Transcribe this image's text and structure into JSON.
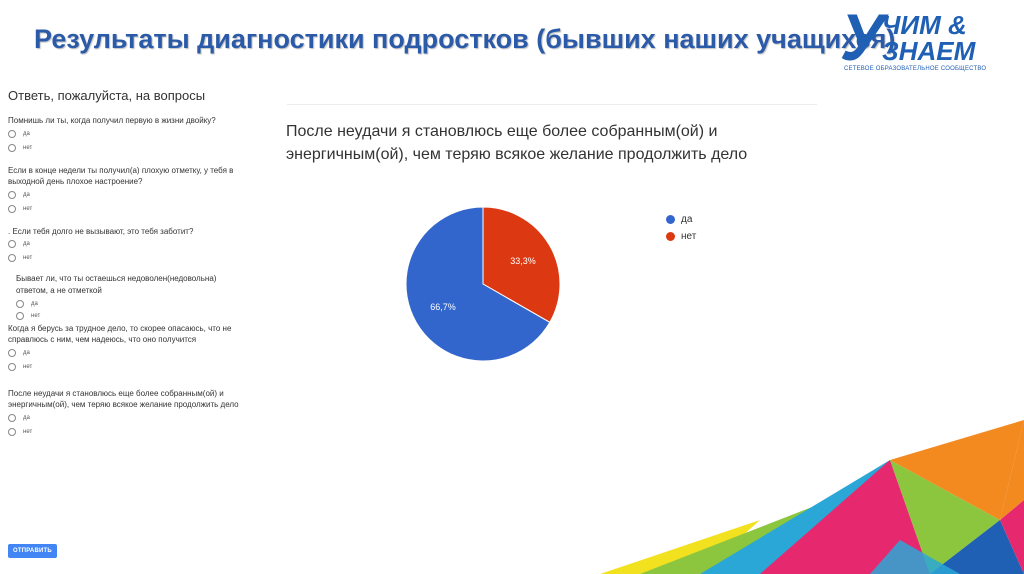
{
  "slide": {
    "title": "Результаты диагностики подростков (бывших наших  учащихся)"
  },
  "logo": {
    "letter": "У",
    "line1": "ЧИМ &",
    "line2": "ЗНАЕМ",
    "subtitle": "СЕТЕВОЕ ОБРАЗОВАТЕЛЬНОЕ СООБЩЕСТВО"
  },
  "form": {
    "title": "Ответь, пожалуйста, на вопросы",
    "questions": [
      {
        "text": "Помнишь ли ты, когда получил первую в жизни двойку?",
        "options": [
          "да",
          "нет"
        ]
      },
      {
        "text": "Если в конце недели ты получил(а) плохую отметку, у тебя в выходной день плохое настроение?",
        "options": [
          "да",
          "нет"
        ]
      },
      {
        "text": ". Если тебя долго не вызывают, это тебя заботит?",
        "options": [
          "да",
          "нет"
        ]
      },
      {
        "text": "Бывает ли, что ты остаешься недоволен(недовольна) ответом, а не отметкой",
        "options": [
          "да",
          "нет"
        ]
      },
      {
        "text": "Когда я берусь за трудное дело, то скорее опасаюсь, что не справлюсь с ним, чем надеюсь, что оно получится",
        "options": [
          "да",
          "нет"
        ]
      },
      {
        "text": "После неудачи я становлюсь еще более собранным(ой) и энергичным(ой), чем теряю всякое желание продолжить дело",
        "options": [
          "да",
          "нет"
        ]
      }
    ],
    "submit_label": "ОТПРАВИТЬ"
  },
  "chart_data": {
    "type": "pie",
    "title": "После неудачи я становлюсь еще более собранным(ой) и энергичным(ой), чем теряю всякое желание продолжить дело",
    "categories": [
      "да",
      "нет"
    ],
    "values": [
      66.7,
      33.3
    ],
    "labels": [
      "66,7%",
      "33,3%"
    ],
    "colors": [
      "#3366cc",
      "#dc3912"
    ],
    "legend_position": "right"
  },
  "colors": {
    "title": "#2b5aa8",
    "logo": "#1f5fb4",
    "submit": "#4285f4"
  }
}
